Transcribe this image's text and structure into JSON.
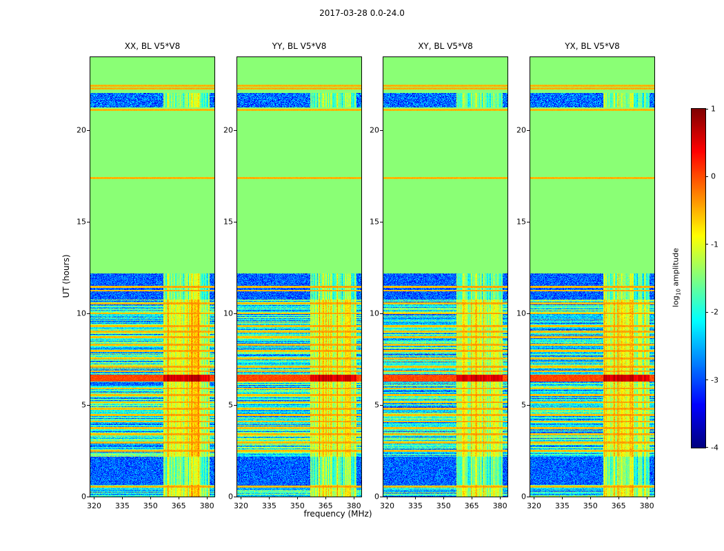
{
  "figure": {
    "title": "2017-03-28 0.0-24.0"
  },
  "chart_data": {
    "type": "heatmap",
    "description": "Four dynamic spectra (waterfall plots) of cross-correlation amplitude vs frequency and time for baseline V5*V8, polarizations XX, YY, XY, YX",
    "panels": [
      {
        "title": "XX, BL V5*V8"
      },
      {
        "title": "YY, BL V5*V8"
      },
      {
        "title": "XY, BL V5*V8"
      },
      {
        "title": "YX, BL V5*V8"
      }
    ],
    "x_axis": {
      "label": "frequency (MHz)",
      "range": [
        318,
        384
      ],
      "ticks": [
        320,
        335,
        350,
        365,
        380
      ]
    },
    "y_axis": {
      "label": "UT (hours)",
      "range": [
        0,
        24
      ],
      "ticks": [
        0,
        5,
        10,
        15,
        20
      ]
    },
    "colorbar": {
      "label_pre": "log",
      "label_sub": "10",
      "label_post": " amplitude",
      "range": [
        -4,
        1
      ],
      "ticks": [
        1,
        0,
        -1,
        -2,
        -3,
        -4
      ],
      "colormap": "jet"
    },
    "features": {
      "flagged_region_hours": [
        12.2,
        24
      ],
      "flagged_value": -1.45,
      "top_orange_lines_hours": [
        22.45,
        22.3,
        21.12,
        17.4
      ],
      "top_noise_band_hours": [
        21.25,
        22.05
      ],
      "rfi_band_mhz": [
        357,
        381.5
      ],
      "quiet_blue_bands_hours": [
        [
          0.65,
          2.2
        ],
        [
          10.75,
          12.2
        ]
      ],
      "orange_lines_hours": [
        0.55,
        2.5,
        2.95,
        3.4,
        3.75,
        4.1,
        4.45,
        4.8,
        5.15,
        5.55,
        5.9,
        6.85,
        7.1,
        7.55,
        7.95,
        8.3,
        8.7,
        9.0,
        9.3,
        10.0,
        10.55,
        11.25,
        11.45
      ],
      "red_band_hours": [
        6.28,
        6.65
      ],
      "noise_floor": -3.4,
      "active_floor": -3.0
    }
  }
}
